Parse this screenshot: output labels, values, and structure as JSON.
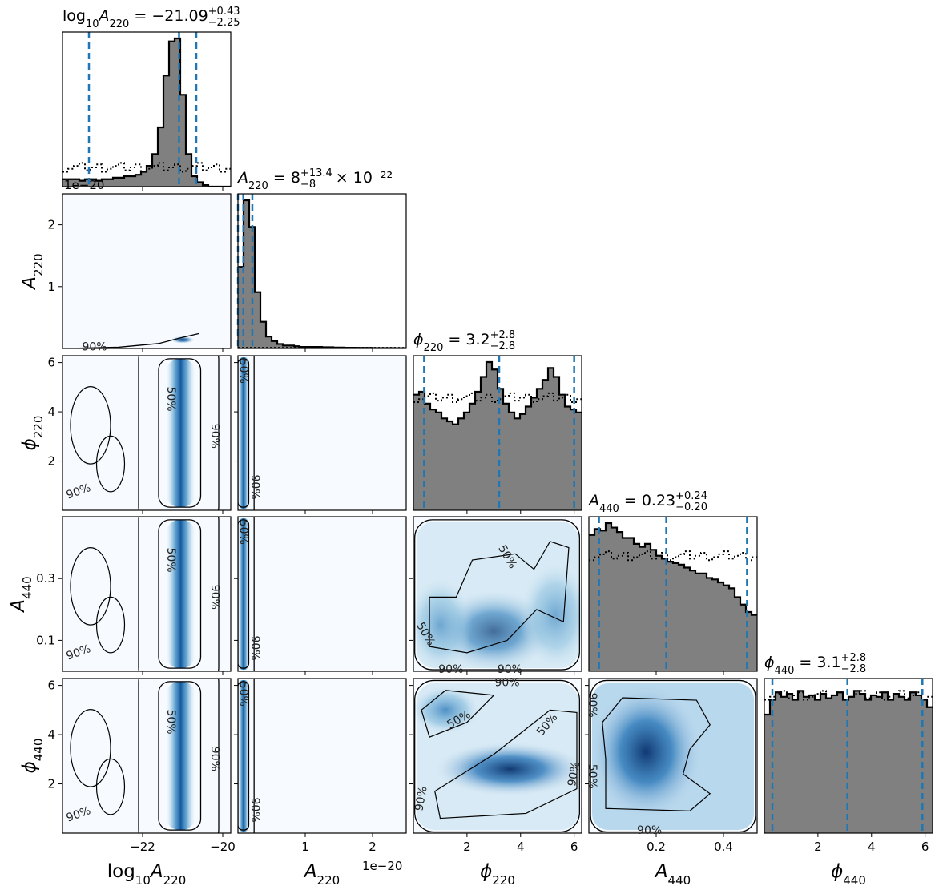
{
  "chart_data": {
    "type": "corner",
    "parameters": [
      "log10_A220",
      "A220",
      "phi220",
      "A440",
      "phi440"
    ],
    "axis_labels": [
      "log10A220",
      "A220",
      "ϕ220",
      "A440",
      "ϕ440"
    ],
    "ranges": {
      "log10_A220": [
        -24.0,
        -19.8
      ],
      "A220": [
        0.0,
        2.5
      ],
      "phi220": [
        0.0,
        6.28
      ],
      "A440": [
        0.0,
        0.5
      ],
      "phi440": [
        0.0,
        6.28
      ]
    },
    "scale_note": "1e−20",
    "ticks": {
      "log10_A220": [
        -22,
        -20
      ],
      "A220": [
        1,
        2
      ],
      "phi220": [
        2,
        4,
        6
      ],
      "A440": [
        0.2,
        0.4
      ],
      "A440_y": [
        0.1,
        0.3
      ],
      "phi440": [
        2,
        4,
        6
      ]
    },
    "tick_labels": {
      "log10_A220": [
        "−22",
        "−20"
      ],
      "A220": [
        "1",
        "2"
      ],
      "phi220": [
        "2",
        "4",
        "6"
      ],
      "A440": [
        "0.2",
        "0.4"
      ],
      "A440_y": [
        "0.1",
        "0.3"
      ],
      "phi440": [
        "2",
        "4",
        "6"
      ]
    },
    "titles": [
      {
        "param": "log10_A220",
        "value": "−21.09",
        "upper": "+0.43",
        "lower": "−2.25",
        "suffix": ""
      },
      {
        "param": "A220",
        "value": "8",
        "upper": "+13.4",
        "lower": "−8",
        "suffix": "× 10⁻²²"
      },
      {
        "param": "phi220",
        "value": "3.2",
        "upper": "+2.8",
        "lower": "−2.8",
        "suffix": ""
      },
      {
        "param": "A440",
        "value": "0.23",
        "upper": "+0.24",
        "lower": "−0.20",
        "suffix": ""
      },
      {
        "param": "phi440",
        "value": "3.1",
        "upper": "+2.8",
        "lower": "−2.8",
        "suffix": ""
      }
    ],
    "quantiles": {
      "log10_A220": [
        -23.34,
        -21.09,
        -20.66
      ],
      "A220": [
        0.0,
        0.08,
        0.214
      ],
      "phi220": [
        0.4,
        3.2,
        6.0
      ],
      "A440": [
        0.03,
        0.23,
        0.47
      ],
      "phi440": [
        0.3,
        3.1,
        5.9
      ]
    },
    "histograms": {
      "log10_A220": [
        0.05,
        0.05,
        0.05,
        0.04,
        0.05,
        0.05,
        0.04,
        0.05,
        0.05,
        0.06,
        0.06,
        0.07,
        0.07,
        0.08,
        0.1,
        0.14,
        0.22,
        0.4,
        0.75,
        0.98,
        1.0,
        0.62,
        0.22,
        0.07,
        0.03,
        0.01,
        0.0,
        0.0,
        0.0,
        0.0
      ],
      "A220": [
        0.55,
        1.0,
        0.82,
        0.38,
        0.18,
        0.08,
        0.05,
        0.03,
        0.02,
        0.02,
        0.015,
        0.01,
        0.01,
        0.01,
        0.01,
        0.008,
        0.008,
        0.006,
        0.006,
        0.005,
        0.005,
        0.004,
        0.004,
        0.004,
        0.003,
        0.003,
        0.003,
        0.003,
        0.002,
        0.002
      ],
      "phi220": [
        0.78,
        0.8,
        0.72,
        0.68,
        0.66,
        0.62,
        0.6,
        0.58,
        0.62,
        0.66,
        0.72,
        0.8,
        0.9,
        1.0,
        0.95,
        0.82,
        0.72,
        0.66,
        0.62,
        0.65,
        0.7,
        0.76,
        0.82,
        0.88,
        0.96,
        0.9,
        0.78,
        0.7,
        0.68,
        0.66
      ],
      "A440": [
        0.92,
        0.96,
        0.95,
        1.0,
        0.97,
        0.94,
        0.9,
        0.9,
        0.86,
        0.84,
        0.86,
        0.82,
        0.78,
        0.76,
        0.74,
        0.73,
        0.72,
        0.7,
        0.68,
        0.66,
        0.66,
        0.63,
        0.62,
        0.6,
        0.58,
        0.56,
        0.5,
        0.45,
        0.4,
        0.38
      ],
      "phi440": [
        0.8,
        0.9,
        0.95,
        0.92,
        0.94,
        0.9,
        0.96,
        0.92,
        0.93,
        0.9,
        0.94,
        0.91,
        0.93,
        0.95,
        0.9,
        0.92,
        0.96,
        0.94,
        0.9,
        0.93,
        0.92,
        0.95,
        0.9,
        0.94,
        0.92,
        0.9,
        0.95,
        0.93,
        0.9,
        0.85
      ]
    },
    "prior_level": {
      "log10_A220": 0.13,
      "A220": 0.005,
      "phi220": 0.76,
      "A440": 0.78,
      "phi440": 0.93
    },
    "contour_levels": [
      "50%",
      "90%"
    ],
    "cmap": "Blues",
    "hist_color": "#808080",
    "quantile_color": "#1f77b4",
    "x_subscript": "10",
    "x_subscript_param": "220"
  }
}
